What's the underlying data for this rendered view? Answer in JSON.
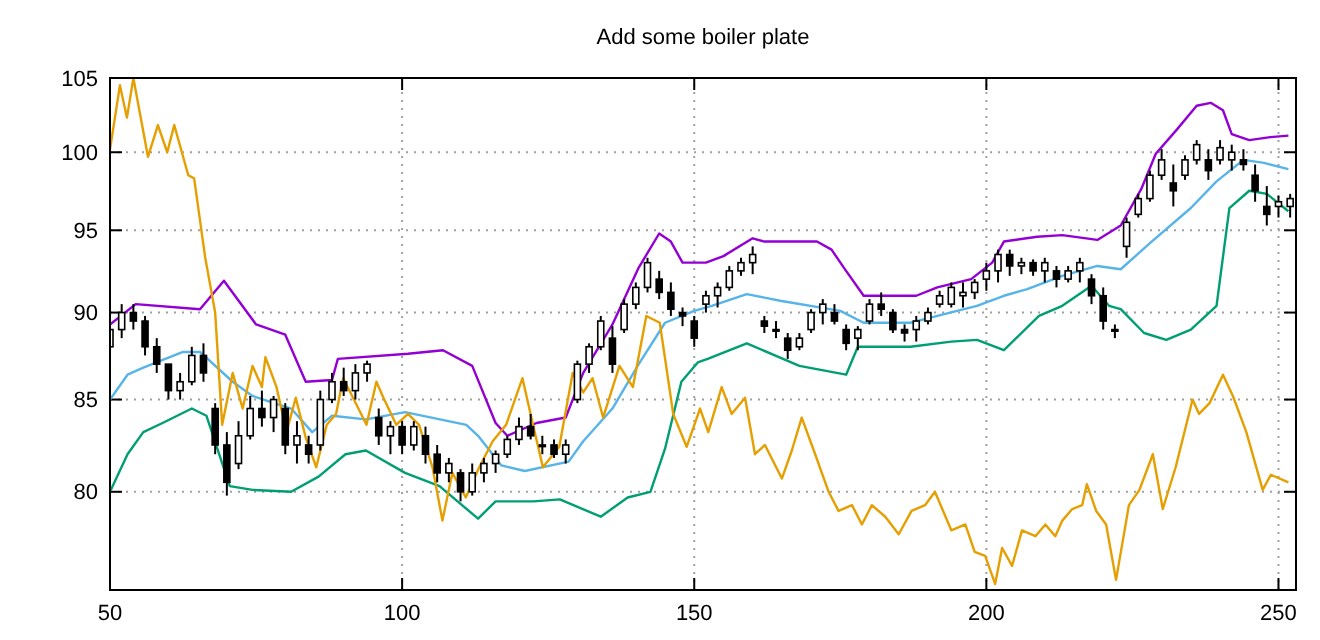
{
  "chart_data": {
    "type": "candlestick",
    "title": "Add some boiler plate",
    "log": true,
    "grid": true,
    "xlim": [
      50,
      253
    ],
    "ylim": [
      75,
      105
    ],
    "xticks": [
      50,
      100,
      150,
      200,
      250
    ],
    "yticks": [
      80,
      85,
      90,
      95,
      100,
      105
    ],
    "series": [
      {
        "color": "#000000",
        "x": [
          50,
          52,
          54,
          56,
          58,
          60,
          62,
          64,
          66,
          68,
          70,
          72,
          74,
          76,
          78,
          80,
          82,
          84,
          86,
          88,
          90,
          92,
          94,
          96,
          98,
          100,
          102,
          104,
          106,
          108,
          110,
          112,
          114,
          116,
          118,
          120,
          122,
          124,
          126,
          128,
          130,
          132,
          134,
          136,
          138,
          140,
          142,
          144,
          146,
          148,
          150,
          152,
          154,
          156,
          158,
          160,
          162,
          164,
          166,
          168,
          170,
          172,
          174,
          176,
          178,
          180,
          182,
          184,
          186,
          188,
          190,
          192,
          194,
          196,
          198,
          200,
          202,
          204,
          206,
          208,
          210,
          212,
          214,
          216,
          218,
          220,
          222,
          224,
          226,
          228,
          230,
          232,
          234,
          236,
          238,
          240,
          242,
          244,
          246,
          248,
          250,
          252
        ],
        "ohlc": [
          [
            88,
            89.5,
            87.5,
            89
          ],
          [
            89,
            90.5,
            88.5,
            90
          ],
          [
            90,
            90.5,
            89,
            89.5
          ],
          [
            89.5,
            89.8,
            87.5,
            88
          ],
          [
            88,
            88.5,
            86.5,
            87
          ],
          [
            87,
            87,
            85,
            85.5
          ],
          [
            85.5,
            86.5,
            85,
            86
          ],
          [
            86,
            88,
            85.8,
            87.5
          ],
          [
            87.5,
            88.2,
            86,
            86.5
          ],
          [
            84.5,
            84.8,
            82,
            82.5
          ],
          [
            82.5,
            83.2,
            79.8,
            80.5
          ],
          [
            81.5,
            83.8,
            81.2,
            83
          ],
          [
            83,
            85.2,
            82.8,
            84.5
          ],
          [
            84.5,
            85.5,
            83.5,
            84
          ],
          [
            84,
            85.2,
            83.2,
            85
          ],
          [
            84.5,
            84.8,
            82,
            82.5
          ],
          [
            82.5,
            83.8,
            81.5,
            83
          ],
          [
            82.5,
            83,
            81.5,
            82
          ],
          [
            82.5,
            85.5,
            82.2,
            85
          ],
          [
            85,
            86.5,
            84.8,
            86
          ],
          [
            86,
            86.8,
            85.2,
            85.5
          ],
          [
            85.5,
            87,
            85,
            86.5
          ],
          [
            86.5,
            87.2,
            86,
            87
          ],
          [
            84,
            84.5,
            82.5,
            83
          ],
          [
            83,
            83.8,
            82,
            83.5
          ],
          [
            83.5,
            83.8,
            82,
            82.5
          ],
          [
            82.5,
            83.8,
            82.2,
            83.5
          ],
          [
            83,
            83.5,
            81.5,
            82
          ],
          [
            82,
            82.5,
            80.5,
            81
          ],
          [
            81,
            81.8,
            80.5,
            81.5
          ],
          [
            81,
            81.2,
            79.5,
            80
          ],
          [
            80,
            81.5,
            79.8,
            81
          ],
          [
            81,
            81.8,
            80.5,
            81.5
          ],
          [
            81.5,
            82.2,
            81,
            82
          ],
          [
            82,
            83,
            81.8,
            82.8
          ],
          [
            82.8,
            84,
            82.5,
            83.5
          ],
          [
            83.5,
            84.2,
            82.8,
            83
          ],
          [
            82.5,
            83,
            82,
            82.5
          ],
          [
            82.5,
            82.8,
            81.8,
            82
          ],
          [
            82,
            82.8,
            81.5,
            82.5
          ],
          [
            85,
            87.2,
            84.8,
            87
          ],
          [
            87,
            88.2,
            86.5,
            88
          ],
          [
            88,
            89.8,
            87.8,
            89.5
          ],
          [
            88.5,
            89.2,
            86.5,
            87
          ],
          [
            89,
            90.8,
            88.8,
            90.5
          ],
          [
            90.5,
            91.8,
            90.2,
            91.5
          ],
          [
            91.5,
            93.3,
            91.2,
            93
          ],
          [
            92,
            92.5,
            90.8,
            91.2
          ],
          [
            91.2,
            91.8,
            89.8,
            90.2
          ],
          [
            90,
            90.3,
            89.2,
            89.8
          ],
          [
            89.5,
            89.8,
            88,
            88.5
          ],
          [
            90.5,
            91.3,
            90,
            91
          ],
          [
            91,
            91.8,
            90.3,
            91.5
          ],
          [
            91.5,
            92.8,
            91.3,
            92.5
          ],
          [
            92.5,
            93.3,
            92.2,
            93
          ],
          [
            93,
            94,
            92.3,
            93.5
          ],
          [
            89.5,
            89.8,
            88.8,
            89.2
          ],
          [
            89,
            89.5,
            88.5,
            89
          ],
          [
            88.5,
            88.8,
            87.3,
            87.8
          ],
          [
            88,
            88.8,
            87.8,
            88.5
          ],
          [
            89,
            90.2,
            88.8,
            90
          ],
          [
            90,
            90.8,
            89.3,
            90.5
          ],
          [
            90,
            90.5,
            89.3,
            89.5
          ],
          [
            89,
            89.3,
            87.8,
            88.2
          ],
          [
            88.5,
            89.2,
            87.8,
            89
          ],
          [
            89.5,
            90.8,
            89.3,
            90.5
          ],
          [
            90.5,
            91.2,
            89.8,
            90.2
          ],
          [
            90,
            90.2,
            88.8,
            89
          ],
          [
            89,
            89.3,
            88.3,
            88.8
          ],
          [
            89,
            89.8,
            88.3,
            89.5
          ],
          [
            89.5,
            90.3,
            89.3,
            90
          ],
          [
            90.5,
            91.3,
            90.3,
            91
          ],
          [
            90.5,
            91.8,
            90.3,
            91.5
          ],
          [
            91,
            91.8,
            90.3,
            91.2
          ],
          [
            91.2,
            92,
            90.8,
            91.8
          ],
          [
            92,
            93,
            91.3,
            92.5
          ],
          [
            92.5,
            93.8,
            91.8,
            93.5
          ],
          [
            93.5,
            93.8,
            92.2,
            92.8
          ],
          [
            92.8,
            93.3,
            92.3,
            93
          ],
          [
            93,
            93.2,
            92.2,
            92.5
          ],
          [
            92.5,
            93.3,
            91.8,
            93
          ],
          [
            92.5,
            92.8,
            91.5,
            92
          ],
          [
            92,
            92.8,
            91.8,
            92.5
          ],
          [
            92.5,
            93.3,
            91.8,
            93
          ],
          [
            92,
            92.3,
            90.5,
            91
          ],
          [
            91,
            91.5,
            89,
            89.5
          ],
          [
            89,
            89.3,
            88.5,
            89
          ],
          [
            94,
            95.8,
            93.3,
            95.5
          ],
          [
            96,
            97.3,
            95.8,
            97
          ],
          [
            97,
            98.8,
            96.8,
            98.5
          ],
          [
            98.5,
            100.2,
            98.2,
            99.5
          ],
          [
            98,
            99.2,
            96.5,
            97.5
          ],
          [
            98.5,
            99.8,
            98.2,
            99.5
          ],
          [
            99.5,
            100.8,
            99.2,
            100.5
          ],
          [
            99.5,
            100.2,
            98.2,
            98.8
          ],
          [
            99.5,
            100.8,
            99.2,
            100.3
          ],
          [
            99.5,
            100.5,
            98.8,
            100
          ],
          [
            99.5,
            100.2,
            98.8,
            99.2
          ],
          [
            98.5,
            99.2,
            96.8,
            97.5
          ],
          [
            96.5,
            97.8,
            95.3,
            96
          ],
          [
            96.5,
            97.2,
            95.8,
            96.8
          ],
          [
            96.5,
            97.3,
            95.8,
            97
          ]
        ]
      },
      {
        "type": "line",
        "color": "#9400d3",
        "x": [
          50,
          54.4,
          65.4,
          69.5,
          75,
          80,
          83.5,
          88,
          89,
          101,
          107,
          112,
          116,
          118,
          123,
          128,
          131,
          136,
          140.5,
          144,
          146,
          148,
          152,
          155,
          160,
          162,
          171,
          173.5,
          175.6,
          179,
          182,
          188,
          191.6,
          197.4,
          201,
          203,
          208.7,
          213,
          219,
          223,
          226.5,
          229,
          232.6,
          236,
          238.4,
          240.5,
          242,
          245,
          248.6,
          251.7
        ],
        "values": [
          89.3,
          90.5,
          90.2,
          91.9,
          89.3,
          88.7,
          86.0,
          86.1,
          87.3,
          87.6,
          87.8,
          86.9,
          83.7,
          83.0,
          83.7,
          84.0,
          86.5,
          89.3,
          92.7,
          94.8,
          94.3,
          93.0,
          93.0,
          93.4,
          94.5,
          94.3,
          94.3,
          93.8,
          92.7,
          91.0,
          91.0,
          91.0,
          91.5,
          92.0,
          93.0,
          94.3,
          94.6,
          94.7,
          94.4,
          95.3,
          97.6,
          99.9,
          101.5,
          103.1,
          103.3,
          102.8,
          101.2,
          100.8,
          101.0,
          101.1
        ]
      },
      {
        "type": "line",
        "color": "#56b4e9",
        "x": [
          50,
          53,
          55.7,
          62.5,
          65.4,
          71,
          74.4,
          81,
          84.6,
          88,
          93.8,
          100.5,
          111,
          113,
          117,
          121,
          128.5,
          131,
          136,
          140.5,
          145,
          150,
          153,
          159,
          164.7,
          175,
          179,
          187,
          191.6,
          198.4,
          203,
          207,
          213,
          219,
          223,
          228,
          235,
          239.4,
          244,
          247.5,
          251.7
        ],
        "values": [
          85.0,
          86.4,
          86.8,
          87.7,
          87.7,
          86.0,
          85.2,
          84.5,
          83.2,
          84.1,
          83.9,
          84.3,
          83.6,
          83.0,
          81.4,
          81.1,
          81.6,
          82.7,
          84.5,
          87.0,
          89.4,
          90.1,
          90.4,
          91.1,
          90.7,
          90.1,
          89.4,
          89.4,
          89.8,
          90.4,
          91.0,
          91.4,
          92.2,
          92.8,
          92.6,
          94.2,
          96.4,
          98.1,
          99.5,
          99.3,
          98.9
        ]
      },
      {
        "type": "line",
        "color": "#009e73",
        "x": [
          50,
          53,
          55.7,
          59,
          64,
          66.5,
          70.5,
          74.4,
          81,
          85.7,
          90.3,
          93.8,
          100.5,
          106.4,
          113,
          116,
          122.5,
          127,
          134,
          138.6,
          142.5,
          145,
          147.8,
          150.6,
          152.3,
          159,
          168,
          176,
          178,
          187,
          194,
          198.4,
          203,
          209,
          213,
          218,
          221,
          223,
          227,
          230.8,
          235,
          239.4,
          241.6,
          245,
          248,
          251.7
        ],
        "values": [
          80.0,
          82.0,
          83.2,
          83.7,
          84.5,
          84.1,
          80.3,
          80.1,
          80.0,
          80.8,
          82.0,
          82.2,
          81.0,
          80.3,
          78.6,
          79.5,
          79.5,
          79.6,
          78.7,
          79.7,
          80.0,
          82.3,
          86.0,
          87.1,
          87.3,
          88.2,
          86.9,
          86.4,
          88.0,
          88.0,
          88.3,
          88.4,
          87.8,
          89.8,
          90.4,
          91.6,
          90.4,
          90.2,
          88.8,
          88.4,
          89.0,
          90.4,
          96.4,
          97.5,
          97.3,
          96.2
        ]
      },
      {
        "type": "line",
        "color": "#e69f00",
        "x": [
          50,
          51.7,
          52.9,
          54,
          56.5,
          58.2,
          59.8,
          61,
          63.4,
          64.4,
          66.3,
          68,
          69.2,
          71,
          72.7,
          74.4,
          76,
          76.6,
          78.5,
          80.2,
          81.8,
          83.5,
          85.3,
          87.1,
          88.7,
          89.9,
          91.6,
          93.9,
          95.6,
          96.8,
          99,
          101,
          102.9,
          105.2,
          106.9,
          108.6,
          110.9,
          113.2,
          115.5,
          117.8,
          120.6,
          122.4,
          124.1,
          126.9,
          129.2,
          131,
          132.6,
          134.4,
          137.2,
          139.5,
          141.8,
          144.1,
          146.4,
          148.7,
          151,
          152.4,
          154.7,
          156.4,
          158.7,
          160.4,
          162.1,
          165,
          166.7,
          168.4,
          170.7,
          173,
          174.7,
          177,
          178.7,
          180.4,
          182.7,
          185,
          187.2,
          189.5,
          191.2,
          194,
          196.4,
          198,
          199.8,
          201.5,
          202.7,
          204.4,
          206.1,
          208.4,
          210.1,
          211.8,
          213,
          214.7,
          216.4,
          217.2,
          218.8,
          220.5,
          222.2,
          224.4,
          226.2,
          228.5,
          230.2,
          232.4,
          235.3,
          236.4,
          238.2,
          240.5,
          242.2,
          244.5,
          247.3,
          248.7,
          251.7
        ],
        "values": [
          100.2,
          104.5,
          102.3,
          105,
          99.7,
          101.8,
          100,
          101.8,
          98.5,
          98.3,
          93.3,
          90.0,
          83.6,
          86.5,
          84.5,
          86.9,
          85.7,
          87.4,
          85.7,
          83.2,
          85.1,
          82.9,
          81.3,
          83.6,
          84.2,
          86.2,
          85.1,
          83.6,
          86.0,
          85.1,
          83.6,
          84.2,
          83.6,
          81.3,
          78.5,
          81.0,
          79.7,
          81.3,
          82.7,
          83.6,
          86.2,
          83.6,
          81.3,
          82.4,
          86.5,
          85.4,
          86.2,
          84.0,
          86.9,
          85.7,
          89.8,
          89.4,
          84.2,
          82.4,
          84.5,
          83.2,
          85.7,
          84.2,
          85.1,
          82.0,
          82.5,
          80.7,
          82.2,
          84.0,
          82.0,
          80.0,
          79.0,
          79.3,
          78.3,
          79.3,
          78.7,
          77.8,
          79.0,
          79.3,
          80.0,
          78.0,
          78.3,
          76.9,
          76.7,
          75.3,
          77.1,
          76.2,
          78.0,
          77.7,
          78.3,
          77.7,
          78.5,
          79.1,
          79.3,
          80.4,
          79.0,
          78.3,
          75.5,
          79.3,
          80.1,
          82.0,
          79.1,
          81.3,
          85.0,
          84.2,
          84.8,
          86.4,
          85.2,
          83.2,
          80.1,
          80.9,
          80.5
        ]
      }
    ]
  }
}
